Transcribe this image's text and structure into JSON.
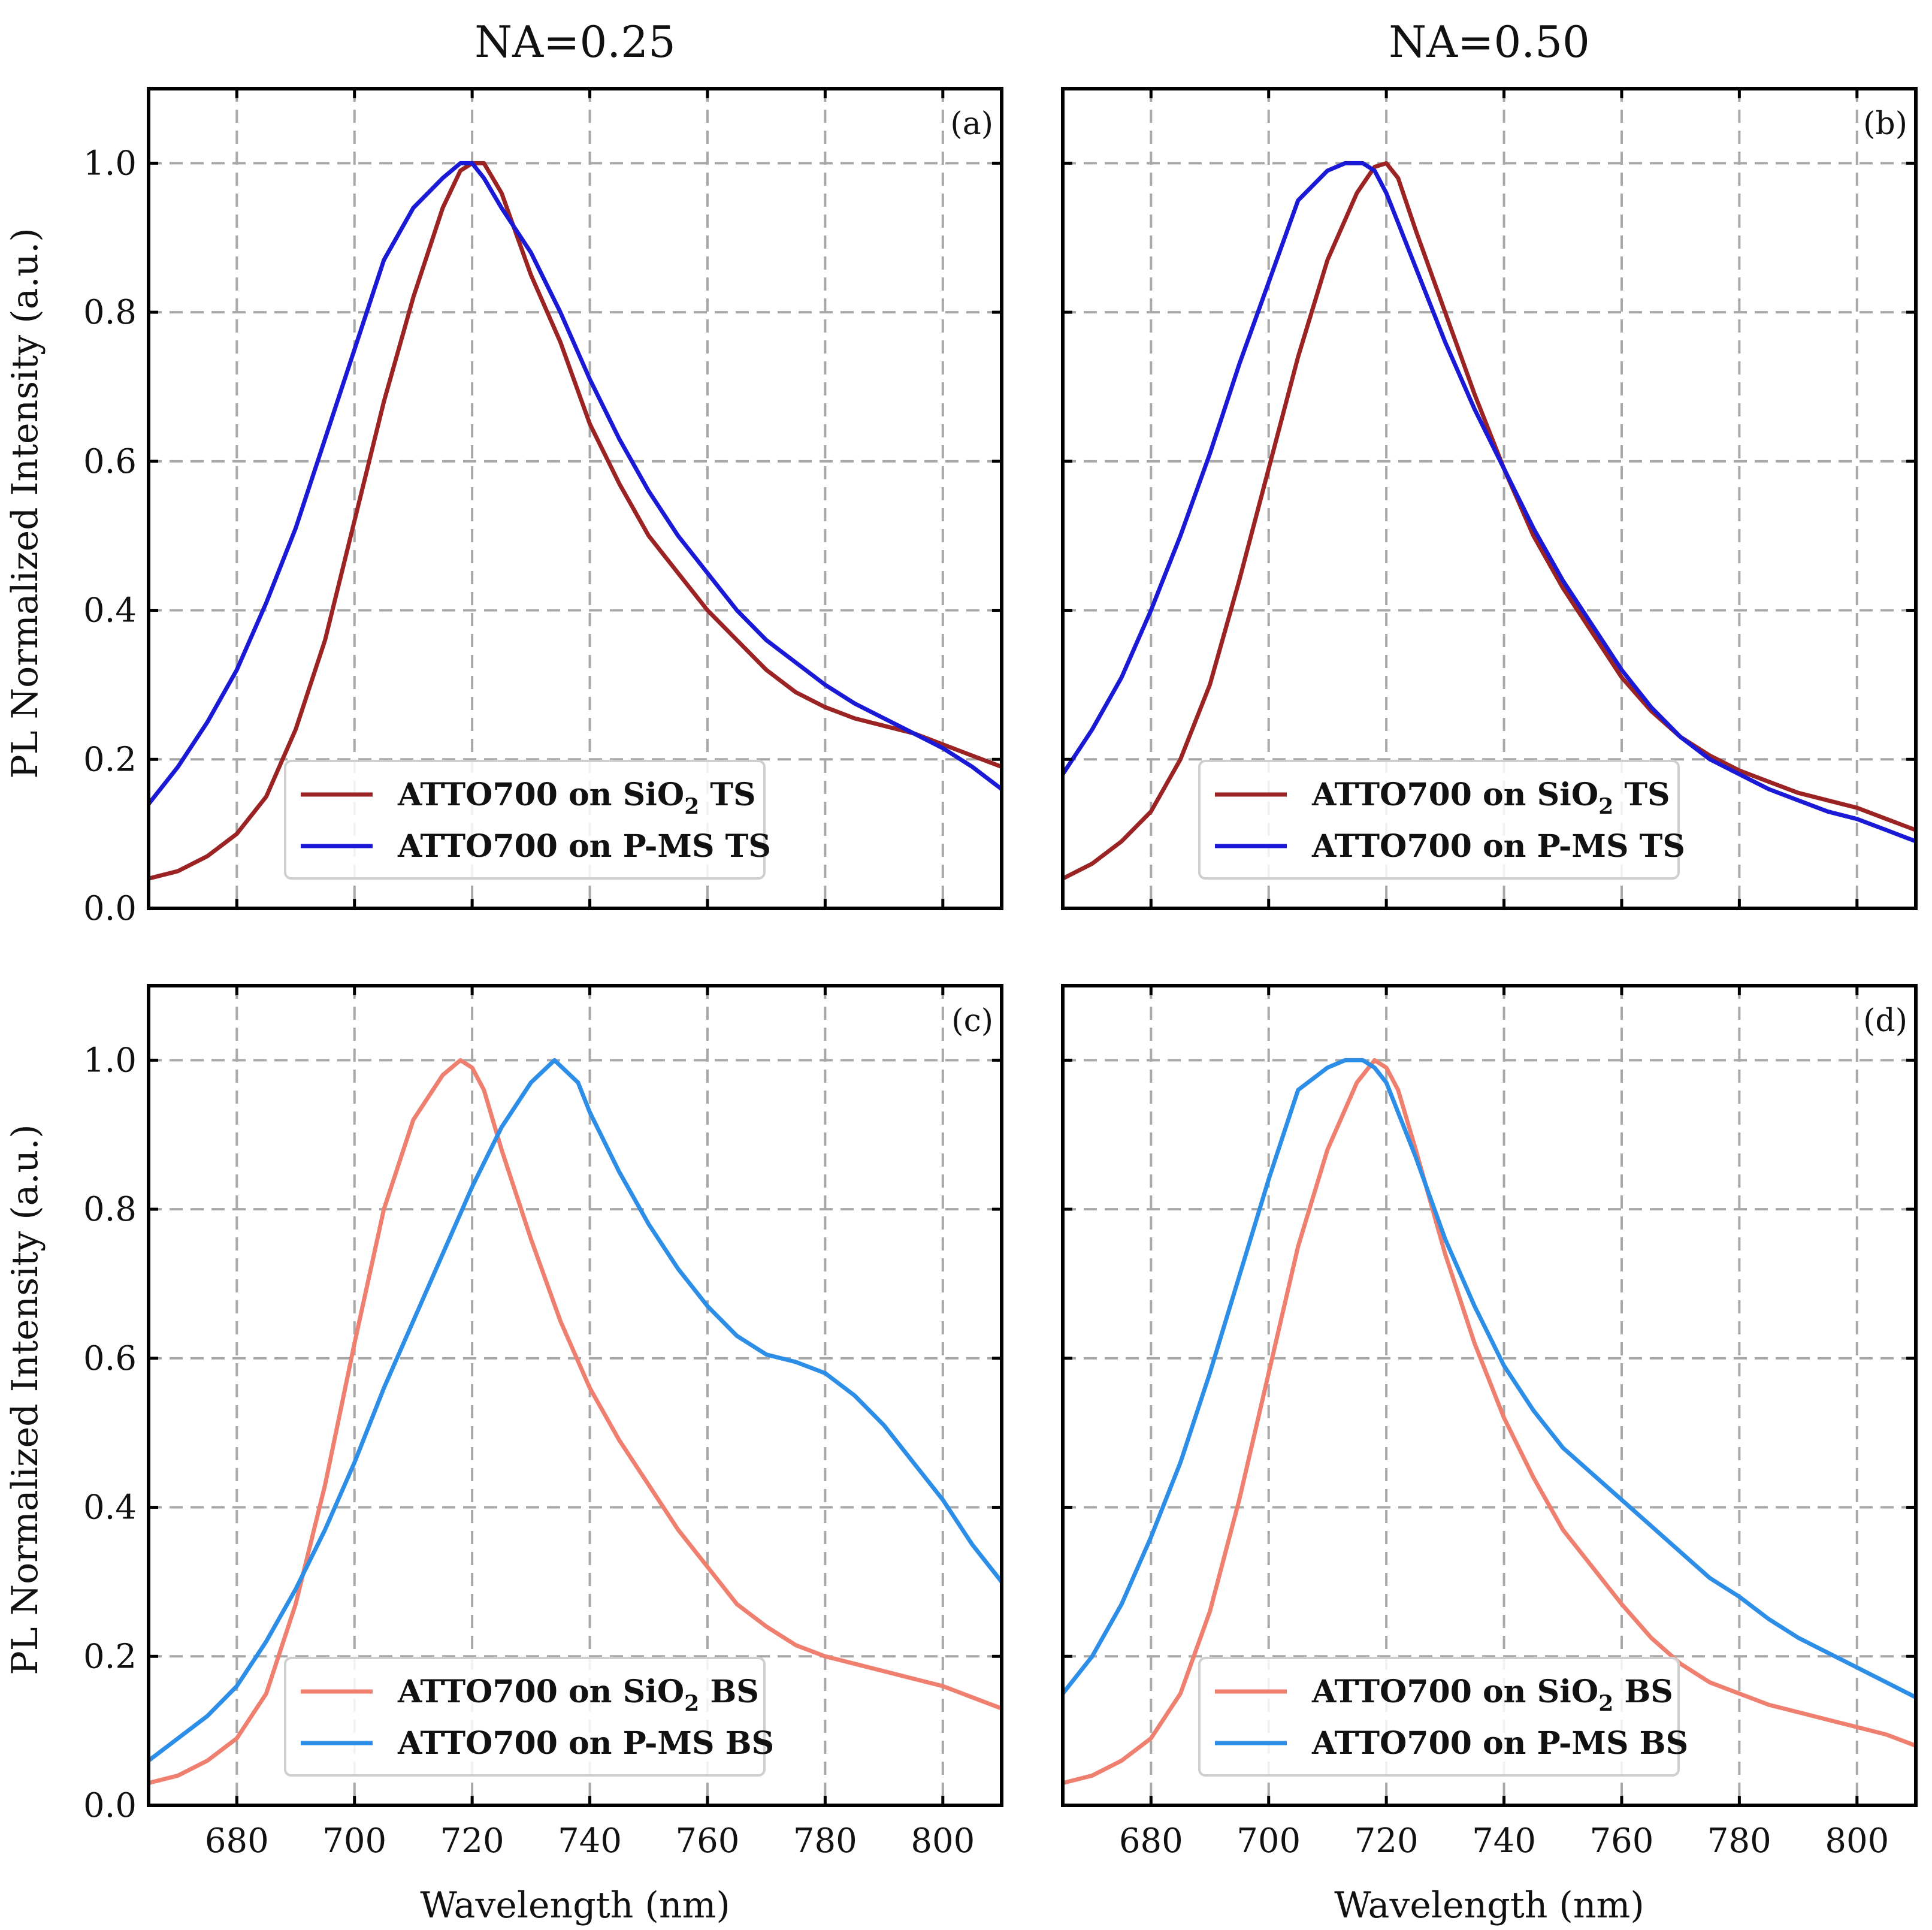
{
  "figure": {
    "column_titles": [
      "NA=0.25",
      "NA=0.50"
    ],
    "xlabel": "Wavelength (nm)",
    "ylabel": "PL Normalized Intensity (a.u.)"
  },
  "chart_data": [
    {
      "type": "line",
      "panel": "(a)",
      "xlim": [
        665,
        810
      ],
      "ylim": [
        0,
        1.1
      ],
      "xticks": [
        680,
        700,
        720,
        740,
        760,
        780,
        800
      ],
      "yticks": [
        0.0,
        0.2,
        0.4,
        0.6,
        0.8,
        1.0
      ],
      "xtick_labels": [
        "680",
        "700",
        "720",
        "740",
        "760",
        "780",
        "800"
      ],
      "ytick_labels": [
        "0.0",
        "0.2",
        "0.4",
        "0.6",
        "0.8",
        "1.0"
      ],
      "legend_position": "lower-center",
      "series": [
        {
          "name": "ATTO700 on SiO2 TS",
          "legend_prefix": "ATTO700 on SiO",
          "legend_sub": "2",
          "legend_suffix": " TS",
          "color": "#9b2323",
          "x": [
            665,
            670,
            675,
            680,
            685,
            690,
            695,
            700,
            705,
            710,
            715,
            718,
            720,
            722,
            725,
            730,
            735,
            740,
            745,
            750,
            755,
            760,
            765,
            770,
            775,
            780,
            785,
            790,
            795,
            800,
            805,
            810
          ],
          "y": [
            0.04,
            0.05,
            0.07,
            0.1,
            0.15,
            0.24,
            0.36,
            0.52,
            0.68,
            0.82,
            0.94,
            0.99,
            1.0,
            1.0,
            0.96,
            0.85,
            0.76,
            0.65,
            0.57,
            0.5,
            0.45,
            0.4,
            0.36,
            0.32,
            0.29,
            0.27,
            0.255,
            0.245,
            0.235,
            0.22,
            0.205,
            0.19
          ]
        },
        {
          "name": "ATTO700 on P-MS TS",
          "legend_prefix": "ATTO700 on P-MS TS",
          "legend_sub": "",
          "legend_suffix": "",
          "color": "#1a1ad6",
          "x": [
            665,
            670,
            675,
            680,
            685,
            690,
            695,
            700,
            705,
            710,
            715,
            718,
            720,
            722,
            725,
            730,
            735,
            740,
            745,
            750,
            755,
            760,
            765,
            770,
            775,
            780,
            785,
            790,
            795,
            800,
            805,
            810
          ],
          "y": [
            0.14,
            0.19,
            0.25,
            0.32,
            0.41,
            0.51,
            0.63,
            0.75,
            0.87,
            0.94,
            0.98,
            1.0,
            1.0,
            0.98,
            0.94,
            0.88,
            0.8,
            0.71,
            0.63,
            0.56,
            0.5,
            0.45,
            0.4,
            0.36,
            0.33,
            0.3,
            0.275,
            0.255,
            0.235,
            0.215,
            0.19,
            0.16
          ]
        }
      ]
    },
    {
      "type": "line",
      "panel": "(b)",
      "xlim": [
        665,
        810
      ],
      "ylim": [
        0,
        1.1
      ],
      "xticks": [
        680,
        700,
        720,
        740,
        760,
        780,
        800
      ],
      "yticks": [
        0.0,
        0.2,
        0.4,
        0.6,
        0.8,
        1.0
      ],
      "xtick_labels": [
        "680",
        "700",
        "720",
        "740",
        "760",
        "780",
        "800"
      ],
      "ytick_labels": [
        "0.0",
        "0.2",
        "0.4",
        "0.6",
        "0.8",
        "1.0"
      ],
      "legend_position": "lower-center",
      "series": [
        {
          "name": "ATTO700 on SiO2 TS",
          "legend_prefix": "ATTO700 on SiO",
          "legend_sub": "2",
          "legend_suffix": " TS",
          "color": "#9b2323",
          "x": [
            665,
            670,
            675,
            680,
            685,
            690,
            695,
            700,
            705,
            710,
            715,
            718,
            720,
            722,
            725,
            730,
            735,
            740,
            745,
            750,
            755,
            760,
            765,
            770,
            775,
            780,
            785,
            790,
            795,
            800,
            805,
            810
          ],
          "y": [
            0.04,
            0.06,
            0.09,
            0.13,
            0.2,
            0.3,
            0.44,
            0.59,
            0.74,
            0.87,
            0.96,
            0.995,
            1.0,
            0.98,
            0.91,
            0.8,
            0.69,
            0.59,
            0.5,
            0.43,
            0.37,
            0.31,
            0.265,
            0.23,
            0.205,
            0.185,
            0.17,
            0.155,
            0.145,
            0.135,
            0.12,
            0.105
          ]
        },
        {
          "name": "ATTO700 on P-MS TS",
          "legend_prefix": "ATTO700 on P-MS TS",
          "legend_sub": "",
          "legend_suffix": "",
          "color": "#1a1ad6",
          "x": [
            665,
            670,
            675,
            680,
            685,
            690,
            695,
            700,
            705,
            710,
            713,
            716,
            718,
            720,
            722,
            725,
            730,
            735,
            740,
            745,
            750,
            755,
            760,
            765,
            770,
            775,
            780,
            785,
            790,
            795,
            800,
            805,
            810
          ],
          "y": [
            0.18,
            0.24,
            0.31,
            0.4,
            0.5,
            0.61,
            0.73,
            0.84,
            0.95,
            0.99,
            1.0,
            1.0,
            0.99,
            0.96,
            0.92,
            0.86,
            0.76,
            0.67,
            0.59,
            0.51,
            0.44,
            0.38,
            0.32,
            0.27,
            0.23,
            0.2,
            0.18,
            0.16,
            0.145,
            0.13,
            0.12,
            0.105,
            0.09
          ]
        }
      ]
    },
    {
      "type": "line",
      "panel": "(c)",
      "xlim": [
        665,
        810
      ],
      "ylim": [
        0,
        1.1
      ],
      "xticks": [
        680,
        700,
        720,
        740,
        760,
        780,
        800
      ],
      "yticks": [
        0.0,
        0.2,
        0.4,
        0.6,
        0.8,
        1.0
      ],
      "xtick_labels": [
        "680",
        "700",
        "720",
        "740",
        "760",
        "780",
        "800"
      ],
      "ytick_labels": [
        "0.0",
        "0.2",
        "0.4",
        "0.6",
        "0.8",
        "1.0"
      ],
      "legend_position": "lower-center",
      "series": [
        {
          "name": "ATTO700 on SiO2 BS",
          "legend_prefix": "ATTO700 on SiO",
          "legend_sub": "2",
          "legend_suffix": " BS",
          "color": "#ef8070",
          "x": [
            665,
            670,
            675,
            680,
            685,
            690,
            695,
            700,
            705,
            710,
            715,
            718,
            720,
            722,
            725,
            730,
            735,
            740,
            745,
            750,
            755,
            760,
            765,
            770,
            775,
            780,
            785,
            790,
            795,
            800,
            805,
            810
          ],
          "y": [
            0.03,
            0.04,
            0.06,
            0.09,
            0.15,
            0.27,
            0.43,
            0.62,
            0.8,
            0.92,
            0.98,
            1.0,
            0.99,
            0.96,
            0.88,
            0.76,
            0.65,
            0.56,
            0.49,
            0.43,
            0.37,
            0.32,
            0.27,
            0.24,
            0.215,
            0.2,
            0.19,
            0.18,
            0.17,
            0.16,
            0.145,
            0.13
          ]
        },
        {
          "name": "ATTO700 on P-MS BS",
          "legend_prefix": "ATTO700 on P-MS BS",
          "legend_sub": "",
          "legend_suffix": "",
          "color": "#2c8ee6",
          "x": [
            665,
            670,
            675,
            680,
            685,
            690,
            695,
            700,
            705,
            710,
            715,
            720,
            725,
            730,
            734,
            738,
            740,
            745,
            750,
            755,
            760,
            765,
            770,
            775,
            780,
            785,
            790,
            795,
            800,
            805,
            810
          ],
          "y": [
            0.06,
            0.09,
            0.12,
            0.16,
            0.22,
            0.29,
            0.37,
            0.46,
            0.56,
            0.65,
            0.74,
            0.83,
            0.91,
            0.97,
            1.0,
            0.97,
            0.93,
            0.85,
            0.78,
            0.72,
            0.67,
            0.63,
            0.605,
            0.595,
            0.58,
            0.55,
            0.51,
            0.46,
            0.41,
            0.35,
            0.3
          ]
        }
      ]
    },
    {
      "type": "line",
      "panel": "(d)",
      "xlim": [
        665,
        810
      ],
      "ylim": [
        0,
        1.1
      ],
      "xticks": [
        680,
        700,
        720,
        740,
        760,
        780,
        800
      ],
      "yticks": [
        0.0,
        0.2,
        0.4,
        0.6,
        0.8,
        1.0
      ],
      "xtick_labels": [
        "680",
        "700",
        "720",
        "740",
        "760",
        "780",
        "800"
      ],
      "ytick_labels": [
        "0.0",
        "0.2",
        "0.4",
        "0.6",
        "0.8",
        "1.0"
      ],
      "legend_position": "lower-center",
      "series": [
        {
          "name": "ATTO700 on SiO2 BS",
          "legend_prefix": "ATTO700 on SiO",
          "legend_sub": "2",
          "legend_suffix": " BS",
          "color": "#ef8070",
          "x": [
            665,
            670,
            675,
            680,
            685,
            690,
            695,
            700,
            705,
            710,
            715,
            718,
            720,
            722,
            725,
            730,
            735,
            740,
            745,
            750,
            755,
            760,
            765,
            770,
            775,
            780,
            785,
            790,
            795,
            800,
            805,
            810
          ],
          "y": [
            0.03,
            0.04,
            0.06,
            0.09,
            0.15,
            0.26,
            0.41,
            0.58,
            0.75,
            0.88,
            0.97,
            1.0,
            0.99,
            0.96,
            0.88,
            0.74,
            0.62,
            0.52,
            0.44,
            0.37,
            0.32,
            0.27,
            0.225,
            0.19,
            0.165,
            0.15,
            0.135,
            0.125,
            0.115,
            0.105,
            0.095,
            0.08
          ]
        },
        {
          "name": "ATTO700 on P-MS BS",
          "legend_prefix": "ATTO700 on P-MS BS",
          "legend_sub": "",
          "legend_suffix": "",
          "color": "#2c8ee6",
          "x": [
            665,
            670,
            675,
            680,
            685,
            690,
            695,
            700,
            705,
            710,
            713,
            716,
            718,
            720,
            722,
            725,
            730,
            735,
            740,
            745,
            750,
            755,
            760,
            765,
            770,
            775,
            780,
            785,
            790,
            795,
            800,
            805,
            810
          ],
          "y": [
            0.15,
            0.2,
            0.27,
            0.36,
            0.46,
            0.58,
            0.71,
            0.84,
            0.96,
            0.99,
            1.0,
            1.0,
            0.99,
            0.97,
            0.93,
            0.87,
            0.76,
            0.67,
            0.59,
            0.53,
            0.48,
            0.445,
            0.41,
            0.375,
            0.34,
            0.305,
            0.28,
            0.25,
            0.225,
            0.205,
            0.185,
            0.165,
            0.145
          ]
        }
      ]
    }
  ]
}
